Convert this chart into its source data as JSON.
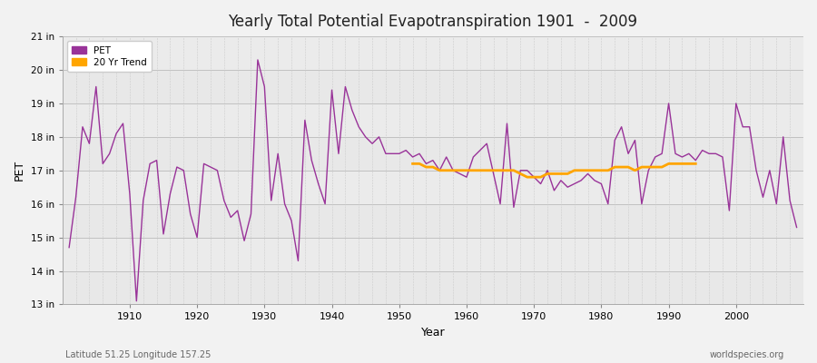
{
  "title": "Yearly Total Potential Evapotranspiration 1901  -  2009",
  "xlabel": "Year",
  "ylabel": "PET",
  "subtitle_left": "Latitude 51.25 Longitude 157.25",
  "subtitle_right": "worldspecies.org",
  "ylim": [
    13,
    21
  ],
  "yticks": [
    13,
    14,
    15,
    16,
    17,
    18,
    19,
    20,
    21
  ],
  "ytick_labels": [
    "13 in",
    "14 in",
    "15 in",
    "16 in",
    "17 in",
    "18 in",
    "19 in",
    "20 in",
    "21 in"
  ],
  "xticks": [
    1910,
    1920,
    1930,
    1940,
    1950,
    1960,
    1970,
    1980,
    1990,
    2000
  ],
  "pet_color": "#993399",
  "trend_color": "#FFA500",
  "bg_color": "#F0F0F0",
  "plot_bg_color": "#F0F0F0",
  "grid_color": "#CCCCCC",
  "years": [
    1901,
    1902,
    1903,
    1904,
    1905,
    1906,
    1907,
    1908,
    1909,
    1910,
    1911,
    1912,
    1913,
    1914,
    1915,
    1916,
    1917,
    1918,
    1919,
    1920,
    1921,
    1922,
    1923,
    1924,
    1925,
    1926,
    1927,
    1928,
    1929,
    1930,
    1931,
    1932,
    1933,
    1934,
    1935,
    1936,
    1937,
    1938,
    1939,
    1940,
    1941,
    1942,
    1943,
    1944,
    1945,
    1946,
    1947,
    1948,
    1949,
    1950,
    1951,
    1952,
    1953,
    1954,
    1955,
    1956,
    1957,
    1958,
    1959,
    1960,
    1961,
    1962,
    1963,
    1964,
    1965,
    1966,
    1967,
    1968,
    1969,
    1970,
    1971,
    1972,
    1973,
    1974,
    1975,
    1976,
    1977,
    1978,
    1979,
    1980,
    1981,
    1982,
    1983,
    1984,
    1985,
    1986,
    1987,
    1988,
    1989,
    1990,
    1991,
    1992,
    1993,
    1994,
    1995,
    1996,
    1997,
    1998,
    1999,
    2000,
    2001,
    2002,
    2003,
    2004,
    2005,
    2006,
    2007,
    2008,
    2009
  ],
  "pet_values": [
    14.7,
    16.2,
    18.3,
    17.8,
    19.5,
    17.2,
    17.5,
    18.1,
    18.4,
    16.3,
    13.1,
    16.1,
    17.2,
    17.3,
    15.1,
    16.3,
    17.1,
    17.0,
    15.7,
    15.0,
    17.2,
    17.1,
    17.0,
    16.1,
    15.6,
    15.8,
    14.9,
    15.7,
    20.3,
    19.5,
    16.1,
    17.5,
    16.0,
    15.5,
    14.3,
    18.5,
    17.3,
    16.6,
    16.0,
    19.4,
    17.5,
    19.5,
    18.8,
    18.3,
    18.0,
    17.8,
    18.0,
    17.5,
    17.5,
    17.5,
    17.6,
    17.4,
    17.5,
    17.2,
    17.3,
    17.0,
    17.4,
    17.0,
    16.9,
    16.8,
    17.4,
    17.6,
    17.8,
    16.9,
    16.0,
    18.4,
    15.9,
    17.0,
    17.0,
    16.8,
    16.6,
    17.0,
    16.4,
    16.7,
    16.5,
    16.6,
    16.7,
    16.9,
    16.7,
    16.6,
    16.0,
    17.9,
    18.3,
    17.5,
    17.9,
    16.0,
    17.0,
    17.4,
    17.5,
    19.0,
    17.5,
    17.4,
    17.5,
    17.3,
    17.6,
    17.5,
    17.5,
    17.4,
    15.8,
    19.0,
    18.3,
    18.3,
    17.0,
    16.2,
    17.0,
    16.0,
    18.0,
    16.1,
    15.3
  ],
  "trend_years": [
    1952,
    1953,
    1954,
    1955,
    1956,
    1957,
    1958,
    1959,
    1960,
    1961,
    1962,
    1963,
    1964,
    1965,
    1966,
    1967,
    1968,
    1969,
    1970,
    1971,
    1972,
    1973,
    1974,
    1975,
    1976,
    1977,
    1978,
    1979,
    1980,
    1981,
    1982,
    1983,
    1984,
    1985,
    1986,
    1987,
    1988,
    1989,
    1990,
    1991,
    1992,
    1993,
    1994
  ],
  "trend_values": [
    17.2,
    17.2,
    17.1,
    17.1,
    17.0,
    17.0,
    17.0,
    17.0,
    17.0,
    17.0,
    17.0,
    17.0,
    17.0,
    17.0,
    17.0,
    17.0,
    16.9,
    16.8,
    16.8,
    16.8,
    16.9,
    16.9,
    16.9,
    16.9,
    17.0,
    17.0,
    17.0,
    17.0,
    17.0,
    17.0,
    17.1,
    17.1,
    17.1,
    17.0,
    17.1,
    17.1,
    17.1,
    17.1,
    17.2,
    17.2,
    17.2,
    17.2,
    17.2
  ]
}
